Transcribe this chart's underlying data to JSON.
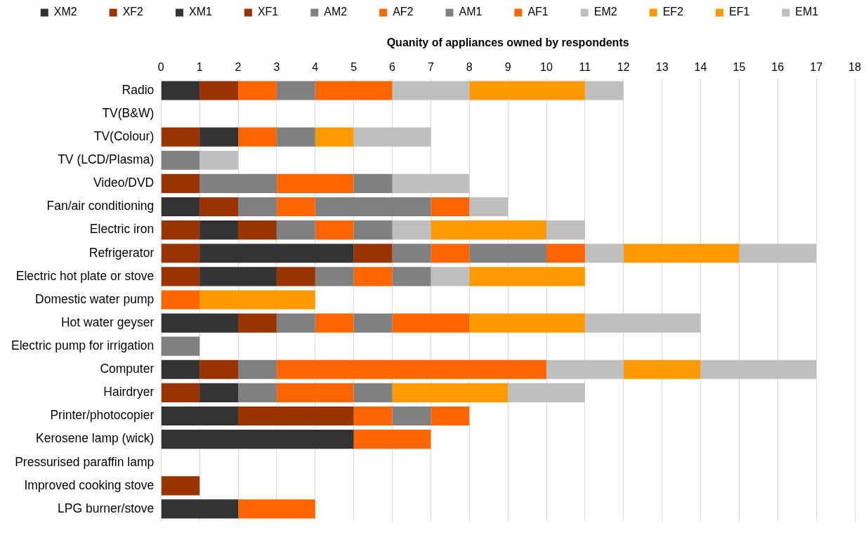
{
  "chart_data": {
    "type": "bar",
    "orientation": "horizontal",
    "stacked": true,
    "xlabel": "Quanity of appliances owned by respondents",
    "categories": [
      "Radio",
      "TV(B&W)",
      "TV(Colour)",
      "TV (LCD/Plasma)",
      "Video/DVD",
      "Fan/air conditioning",
      "Electric iron",
      "Refrigerator",
      "Electric hot plate or stove",
      "Domestic water pump",
      "Hot water geyser",
      "Electric pump for irrigation",
      "Computer",
      "Hairdryer",
      "Printer/photocopier",
      "Kerosene lamp (wick)",
      "Pressurised paraffin lamp",
      "Improved cooking stove",
      "LPG burner/stove"
    ],
    "series": [
      {
        "name": "XM2",
        "color": "#333333",
        "values": [
          1,
          0,
          0,
          0,
          0,
          1,
          0,
          0,
          0,
          0,
          2,
          0,
          1,
          0,
          2,
          5,
          0,
          0,
          2
        ]
      },
      {
        "name": "XF2",
        "color": "#993300",
        "values": [
          1,
          0,
          1,
          0,
          1,
          1,
          1,
          1,
          1,
          0,
          1,
          0,
          1,
          1,
          3,
          0,
          0,
          1,
          0
        ]
      },
      {
        "name": "XM1",
        "color": "#333333",
        "values": [
          0,
          0,
          1,
          0,
          0,
          0,
          1,
          4,
          2,
          0,
          0,
          0,
          0,
          1,
          0,
          0,
          0,
          0,
          0
        ]
      },
      {
        "name": "XF1",
        "color": "#993300",
        "values": [
          0,
          0,
          0,
          0,
          0,
          0,
          1,
          1,
          1,
          0,
          0,
          0,
          0,
          0,
          0,
          0,
          0,
          0,
          0
        ]
      },
      {
        "name": "AM2",
        "color": "#808080",
        "values": [
          0,
          0,
          0,
          1,
          2,
          1,
          1,
          1,
          1,
          0,
          1,
          1,
          1,
          1,
          0,
          0,
          0,
          0,
          0
        ]
      },
      {
        "name": "AF2",
        "color": "#ff6600",
        "values": [
          1,
          0,
          1,
          0,
          2,
          1,
          1,
          1,
          1,
          1,
          1,
          0,
          7,
          2,
          1,
          2,
          0,
          0,
          2
        ]
      },
      {
        "name": "AM1",
        "color": "#808080",
        "values": [
          1,
          0,
          1,
          0,
          1,
          3,
          1,
          2,
          1,
          0,
          1,
          0,
          0,
          1,
          1,
          0,
          0,
          0,
          0
        ]
      },
      {
        "name": "AF1",
        "color": "#ff6600",
        "values": [
          2,
          0,
          0,
          0,
          0,
          1,
          0,
          1,
          0,
          0,
          2,
          0,
          0,
          0,
          1,
          0,
          0,
          0,
          0
        ]
      },
      {
        "name": "EM2",
        "color": "#bfbfbf",
        "values": [
          2,
          0,
          0,
          1,
          2,
          1,
          1,
          1,
          1,
          0,
          0,
          0,
          2,
          0,
          0,
          0,
          0,
          0,
          0
        ]
      },
      {
        "name": "EF2",
        "color": "#ff9900",
        "values": [
          3,
          0,
          1,
          0,
          0,
          0,
          3,
          3,
          3,
          3,
          3,
          0,
          2,
          3,
          0,
          0,
          0,
          0,
          0
        ]
      },
      {
        "name": "EF1",
        "color": "#ff9900",
        "values": [
          0,
          0,
          0,
          0,
          0,
          0,
          0,
          0,
          0,
          0,
          0,
          0,
          0,
          0,
          0,
          0,
          0,
          0,
          0
        ]
      },
      {
        "name": "EM1",
        "color": "#bfbfbf",
        "values": [
          1,
          0,
          2,
          0,
          0,
          0,
          1,
          2,
          0,
          0,
          3,
          0,
          3,
          2,
          0,
          0,
          0,
          0,
          0
        ]
      }
    ],
    "xlim": [
      0,
      18
    ],
    "xticks": [
      0,
      1,
      2,
      3,
      4,
      5,
      6,
      7,
      8,
      9,
      10,
      11,
      12,
      13,
      14,
      15,
      16,
      17,
      18
    ],
    "grid": "x",
    "legend": "top"
  }
}
